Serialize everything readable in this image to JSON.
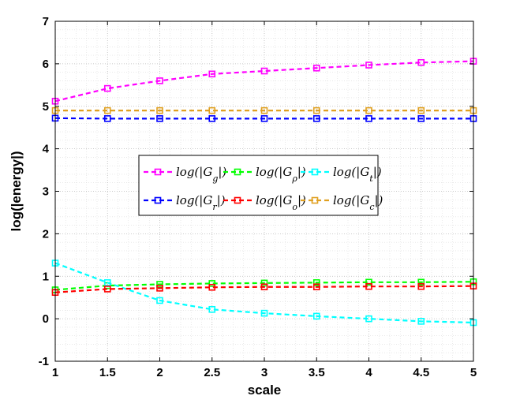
{
  "chart_data": {
    "type": "line",
    "title": "",
    "xlabel": "scale",
    "ylabel": "log(|energy|)",
    "xlim": [
      1,
      5
    ],
    "ylim": [
      -1,
      7
    ],
    "xticks": [
      1,
      1.5,
      2,
      2.5,
      3,
      3.5,
      4,
      4.5,
      5
    ],
    "xtick_labels": [
      "1",
      "1.5",
      "2",
      "2.5",
      "3",
      "3.5",
      "4",
      "4.5",
      "5"
    ],
    "yticks": [
      -1,
      0,
      1,
      2,
      3,
      4,
      5,
      6,
      7
    ],
    "ytick_labels": [
      "-1",
      "0",
      "1",
      "2",
      "3",
      "4",
      "5",
      "6",
      "7"
    ],
    "grid": true,
    "minor_grid": true,
    "legend_position": "center",
    "x": [
      1,
      1.5,
      2,
      2.5,
      3,
      3.5,
      4,
      4.5,
      5
    ],
    "series": [
      {
        "name": "log(|Gg|)",
        "label_main": "log(|G",
        "label_sub": "g",
        "label_end": "|)",
        "color": "#ff00ff",
        "values": [
          5.12,
          5.42,
          5.6,
          5.76,
          5.83,
          5.9,
          5.97,
          6.03,
          6.06
        ]
      },
      {
        "name": "log(|Gρ|)",
        "label_main": "log(|G",
        "label_sub": "ρ",
        "label_end": "|)",
        "color": "#00ff00",
        "values": [
          0.68,
          0.78,
          0.81,
          0.83,
          0.84,
          0.85,
          0.86,
          0.86,
          0.87
        ]
      },
      {
        "name": "log(|Gt|)",
        "label_main": "log(|G",
        "label_sub": "t",
        "label_end": "|)",
        "color": "#00ffff",
        "values": [
          1.31,
          0.85,
          0.43,
          0.22,
          0.13,
          0.06,
          0.0,
          -0.06,
          -0.09
        ]
      },
      {
        "name": "log(|Gr|)",
        "label_main": "log(|G",
        "label_sub": "r",
        "label_end": "|)",
        "color": "#0000ff",
        "values": [
          4.72,
          4.71,
          4.71,
          4.71,
          4.71,
          4.71,
          4.71,
          4.71,
          4.71
        ]
      },
      {
        "name": "log(|Go|)",
        "label_main": "log(|G",
        "label_sub": "o",
        "label_end": "|)",
        "color": "#ff0000",
        "values": [
          0.62,
          0.7,
          0.72,
          0.74,
          0.75,
          0.75,
          0.76,
          0.76,
          0.77
        ]
      },
      {
        "name": "log(|Gc|)",
        "label_main": "log(|G",
        "label_sub": "c",
        "label_end": "|)",
        "color": "#e0a020",
        "values": [
          4.9,
          4.9,
          4.9,
          4.9,
          4.9,
          4.9,
          4.9,
          4.9,
          4.9
        ]
      }
    ]
  }
}
